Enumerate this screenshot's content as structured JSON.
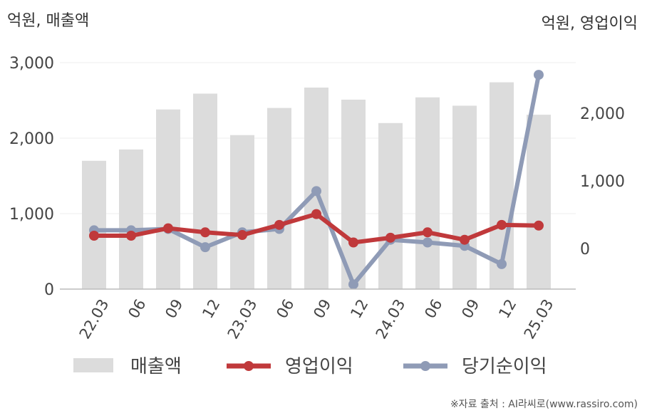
{
  "chart_data": {
    "type": "bar+line",
    "left_axis_unit": "억원, 매출액",
    "right_axis_unit": "억원, 영업이익",
    "source": "※자료 출처 : AI라씨로(www.rassiro.com)",
    "categories": [
      "22.03",
      "06",
      "09",
      "12",
      "23.03",
      "06",
      "09",
      "12",
      "24.03",
      "06",
      "09",
      "12",
      "25.03"
    ],
    "left_ylim": [
      0,
      3000
    ],
    "left_ticks": [
      "0",
      "1,000",
      "2,000",
      "3,000"
    ],
    "left_tick_values": [
      0,
      1000,
      2000,
      3000
    ],
    "right_ylim": [
      -600,
      2750
    ],
    "right_ticks": [
      "0",
      "1,000",
      "2,000"
    ],
    "right_tick_values": [
      0,
      1000,
      2000
    ],
    "series": [
      {
        "name": "매출액",
        "kind": "bar",
        "axis": "left",
        "color": "#dcdcdc",
        "values": [
          1700,
          1850,
          2380,
          2590,
          2040,
          2400,
          2670,
          2510,
          2200,
          2540,
          2430,
          2740,
          2310
        ]
      },
      {
        "name": "영업이익",
        "kind": "line",
        "axis": "right",
        "color": "#c0393b",
        "values": [
          190,
          190,
          300,
          240,
          200,
          350,
          510,
          90,
          160,
          240,
          130,
          350,
          340
        ]
      },
      {
        "name": "당기순이익",
        "kind": "line",
        "axis": "right",
        "color": "#8f9bb6",
        "values": [
          270,
          270,
          290,
          20,
          240,
          290,
          850,
          -530,
          130,
          90,
          40,
          -230,
          2570
        ]
      }
    ],
    "grid": true,
    "legend_position": "bottom"
  }
}
